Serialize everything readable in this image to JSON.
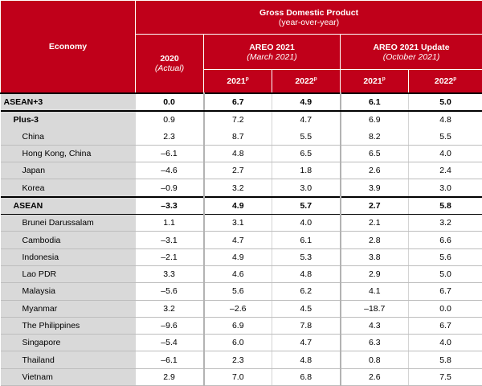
{
  "header": {
    "economy_label": "Economy",
    "gdp_title": "Gross Domestic Product",
    "gdp_subtitle": "(year-over-year)",
    "col_2020": "2020",
    "col_2020_sub": "(Actual)",
    "areo_title": "AREO 2021",
    "areo_sub": "(March 2021)",
    "update_title": "AREO 2021 Update",
    "update_sub": "(October 2021)",
    "year_2021": "2021",
    "year_2022": "2022",
    "proj_mark": "p"
  },
  "rows": [
    {
      "name": "ASEAN+3",
      "v2020": "0.0",
      "a2021": "6.7",
      "a2022": "4.9",
      "u2021": "6.1",
      "u2022": "5.0"
    },
    {
      "name": "Plus-3",
      "v2020": "0.9",
      "a2021": "7.2",
      "a2022": "4.7",
      "u2021": "6.9",
      "u2022": "4.8"
    },
    {
      "name": "China",
      "v2020": "2.3",
      "a2021": "8.7",
      "a2022": "5.5",
      "u2021": "8.2",
      "u2022": "5.5"
    },
    {
      "name": "Hong Kong, China",
      "v2020": "–6.1",
      "a2021": "4.8",
      "a2022": "6.5",
      "u2021": "6.5",
      "u2022": "4.0"
    },
    {
      "name": "Japan",
      "v2020": "–4.6",
      "a2021": "2.7",
      "a2022": "1.8",
      "u2021": "2.6",
      "u2022": "2.4"
    },
    {
      "name": "Korea",
      "v2020": "–0.9",
      "a2021": "3.2",
      "a2022": "3.0",
      "u2021": "3.9",
      "u2022": "3.0"
    },
    {
      "name": "ASEAN",
      "v2020": "–3.3",
      "a2021": "4.9",
      "a2022": "5.7",
      "u2021": "2.7",
      "u2022": "5.8"
    },
    {
      "name": "Brunei Darussalam",
      "v2020": "1.1",
      "a2021": "3.1",
      "a2022": "4.0",
      "u2021": "2.1",
      "u2022": "3.2"
    },
    {
      "name": "Cambodia",
      "v2020": "–3.1",
      "a2021": "4.7",
      "a2022": "6.1",
      "u2021": "2.8",
      "u2022": "6.6"
    },
    {
      "name": "Indonesia",
      "v2020": "–2.1",
      "a2021": "4.9",
      "a2022": "5.3",
      "u2021": "3.8",
      "u2022": "5.6"
    },
    {
      "name": "Lao PDR",
      "v2020": "3.3",
      "a2021": "4.6",
      "a2022": "4.8",
      "u2021": "2.9",
      "u2022": "5.0"
    },
    {
      "name": "Malaysia",
      "v2020": "–5.6",
      "a2021": "5.6",
      "a2022": "6.2",
      "u2021": "4.1",
      "u2022": "6.7"
    },
    {
      "name": "Myanmar",
      "v2020": "3.2",
      "a2021": "–2.6",
      "a2022": "4.5",
      "u2021": "–18.7",
      "u2022": "0.0"
    },
    {
      "name": "The Philippines",
      "v2020": "–9.6",
      "a2021": "6.9",
      "a2022": "7.8",
      "u2021": "4.3",
      "u2022": "6.7"
    },
    {
      "name": "Singapore",
      "v2020": "–5.4",
      "a2021": "6.0",
      "a2022": "4.7",
      "u2021": "6.3",
      "u2022": "4.0"
    },
    {
      "name": "Thailand",
      "v2020": "–6.1",
      "a2021": "2.3",
      "a2022": "4.8",
      "u2021": "0.8",
      "u2022": "5.8"
    },
    {
      "name": "Vietnam",
      "v2020": "2.9",
      "a2021": "7.0",
      "a2022": "6.8",
      "u2021": "2.6",
      "u2022": "7.5"
    }
  ]
}
